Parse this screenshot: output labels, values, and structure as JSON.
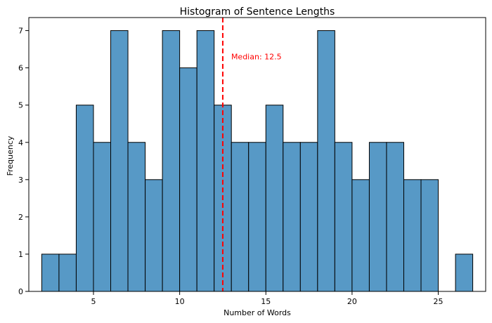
{
  "chart_data": {
    "type": "bar",
    "title": "Histogram of Sentence Lengths",
    "xlabel": "Number of Words",
    "ylabel": "Frequency",
    "xlim": [
      1.25,
      27.75
    ],
    "ylim": [
      0,
      7.35
    ],
    "xticks": [
      5,
      10,
      15,
      20,
      25
    ],
    "yticks": [
      0,
      1,
      2,
      3,
      4,
      5,
      6,
      7
    ],
    "bin_edges": [
      2,
      3,
      4,
      5,
      6,
      7,
      8,
      9,
      10,
      11,
      12,
      13,
      14,
      15,
      16,
      17,
      18,
      19,
      20,
      21,
      22,
      23,
      24,
      25,
      26,
      27
    ],
    "values": [
      1,
      1,
      5,
      4,
      7,
      4,
      3,
      7,
      6,
      7,
      5,
      4,
      4,
      5,
      4,
      4,
      7,
      4,
      3,
      4,
      4,
      3,
      3,
      0,
      1
    ],
    "median": 12.5,
    "median_label": "Median: 12.5",
    "bar_color": "#5799c6",
    "bar_edge_color": "#000000",
    "median_color": "#ff0000",
    "grid": false
  }
}
